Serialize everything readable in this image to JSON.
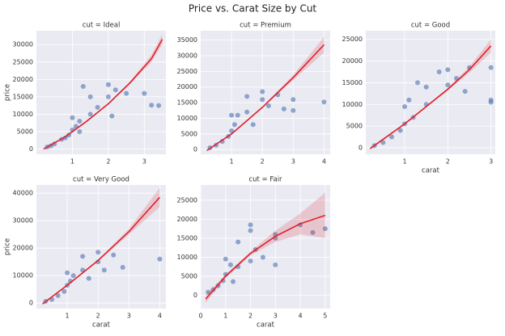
{
  "title": "Price vs. Carat Size by Cut",
  "chart_data": [
    {
      "type": "scatter",
      "title": "cut = Ideal",
      "ylabel": "price",
      "xlim": [
        0.0,
        3.6
      ],
      "xticks": [
        1,
        2,
        3
      ],
      "ylim": [
        -1500,
        34000
      ],
      "yticks": [
        0,
        5000,
        10000,
        15000,
        20000,
        25000,
        30000
      ],
      "grid": true,
      "points": {
        "color": "#4c72b0",
        "x": [
          0.3,
          0.4,
          0.5,
          0.7,
          0.9,
          1.0,
          1.1,
          1.2,
          1.0,
          1.5,
          1.5,
          1.3,
          1.7,
          2.0,
          2.0,
          2.2,
          2.5,
          2.1,
          3.0,
          3.4,
          3.2,
          0.8,
          1.2
        ],
        "y": [
          600,
          900,
          1500,
          2800,
          4000,
          5500,
          6500,
          8000,
          9000,
          10000,
          15000,
          18000,
          12000,
          15000,
          18500,
          17000,
          16000,
          9500,
          16000,
          12500,
          12600,
          3200,
          5000
        ]
      },
      "fit": {
        "color": "#e0202a",
        "x": [
          0.2,
          0.8,
          1.4,
          2,
          2.6,
          3.2,
          3.5
        ],
        "y": [
          0,
          3500,
          8000,
          13000,
          19000,
          26000,
          31500
        ],
        "lower": [
          -200,
          3400,
          7900,
          12800,
          18600,
          25000,
          30000
        ],
        "upper": [
          200,
          3600,
          8100,
          13200,
          19400,
          27000,
          33000
        ]
      }
    },
    {
      "type": "scatter",
      "title": "cut = Premium",
      "xlim": [
        0.0,
        4.2
      ],
      "xticks": [
        1,
        2,
        3,
        4
      ],
      "ylim": [
        -1500,
        38000
      ],
      "yticks": [
        0,
        5000,
        10000,
        15000,
        20000,
        25000,
        30000,
        35000
      ],
      "grid": true,
      "points": {
        "color": "#4c72b0",
        "x": [
          0.3,
          0.5,
          0.7,
          0.9,
          1.0,
          1.1,
          1.2,
          1.5,
          1.5,
          1.0,
          2.0,
          2.0,
          2.2,
          2.5,
          3.0,
          3.0,
          4.0,
          2.7,
          1.7
        ],
        "y": [
          600,
          1400,
          2600,
          4200,
          6000,
          8000,
          11000,
          12000,
          17000,
          11000,
          16000,
          18500,
          14000,
          17500,
          16000,
          12500,
          15200,
          13000,
          8000
        ]
      },
      "fit": {
        "color": "#e0202a",
        "x": [
          0.2,
          1,
          2,
          3,
          4
        ],
        "y": [
          -300,
          5000,
          13500,
          23000,
          33500
        ],
        "lower": [
          -500,
          4900,
          13300,
          22200,
          31000
        ],
        "upper": [
          -100,
          5100,
          13700,
          23800,
          36000
        ]
      }
    },
    {
      "type": "scatter",
      "title": "cut = Good",
      "xlabel": "carat",
      "xlim": [
        0.1,
        3.1
      ],
      "xticks": [
        1,
        2,
        3
      ],
      "ylim": [
        -1500,
        27000
      ],
      "yticks": [
        0,
        5000,
        10000,
        15000,
        20000,
        25000
      ],
      "grid": true,
      "points": {
        "color": "#4c72b0",
        "x": [
          0.3,
          0.5,
          0.7,
          0.9,
          1.0,
          1.0,
          1.2,
          1.1,
          1.5,
          1.5,
          2.0,
          2.0,
          1.8,
          2.2,
          2.5,
          2.4,
          3.0,
          3.0,
          3.0,
          1.3
        ],
        "y": [
          500,
          1200,
          2500,
          4000,
          5500,
          9500,
          7000,
          11000,
          10000,
          14000,
          14500,
          18000,
          17500,
          16000,
          18500,
          13000,
          18500,
          11000,
          10500,
          15000
        ]
      },
      "fit": {
        "color": "#e0202a",
        "x": [
          0.2,
          1,
          1.5,
          2,
          2.5,
          3
        ],
        "y": [
          -200,
          5500,
          9500,
          13500,
          18000,
          23500
        ],
        "lower": [
          -500,
          5300,
          9300,
          13200,
          17300,
          22000
        ],
        "upper": [
          100,
          5700,
          9700,
          13800,
          18700,
          25000
        ]
      }
    },
    {
      "type": "scatter",
      "title": "cut = Very Good",
      "ylabel": "price",
      "xlabel": "carat",
      "xlim": [
        0.0,
        4.2
      ],
      "xticks": [
        1,
        2,
        3,
        4
      ],
      "ylim": [
        -2000,
        43000
      ],
      "yticks": [
        0,
        10000,
        20000,
        30000,
        40000
      ],
      "grid": true,
      "points": {
        "color": "#4c72b0",
        "x": [
          0.3,
          0.5,
          0.7,
          0.9,
          1.0,
          1.1,
          1.2,
          1.5,
          1.5,
          1.0,
          2.0,
          2.0,
          2.2,
          2.5,
          2.8,
          4.0,
          1.7
        ],
        "y": [
          600,
          1300,
          2700,
          4200,
          6500,
          8000,
          10000,
          12000,
          17000,
          11000,
          15000,
          18500,
          12000,
          17500,
          13000,
          16000,
          9000
        ]
      },
      "fit": {
        "color": "#e0202a",
        "x": [
          0.2,
          1,
          2,
          3,
          4
        ],
        "y": [
          -300,
          6500,
          15500,
          26000,
          38500
        ],
        "lower": [
          -600,
          6300,
          15200,
          25000,
          35000
        ],
        "upper": [
          0,
          6700,
          15800,
          27000,
          42000
        ]
      }
    },
    {
      "type": "scatter",
      "title": "cut = Fair",
      "xlabel": "carat",
      "xlim": [
        0.0,
        5.2
      ],
      "xticks": [
        0,
        1,
        2,
        3,
        4,
        5
      ],
      "ylim": [
        -3500,
        29000
      ],
      "yticks": [
        0,
        5000,
        10000,
        15000,
        20000,
        25000
      ],
      "grid": true,
      "points": {
        "color": "#4c72b0",
        "x": [
          0.3,
          0.5,
          0.7,
          0.9,
          1.0,
          1.0,
          1.2,
          1.5,
          1.5,
          2.0,
          2.0,
          2.0,
          2.2,
          2.5,
          3.0,
          3.0,
          3.0,
          4.0,
          4.5,
          5.0,
          1.3
        ],
        "y": [
          800,
          1500,
          2500,
          3800,
          5500,
          9500,
          8000,
          7500,
          14000,
          9000,
          17000,
          18500,
          12000,
          10000,
          8000,
          16000,
          15000,
          18500,
          16500,
          17500,
          3600
        ]
      },
      "fit": {
        "color": "#e0202a",
        "x": [
          0.2,
          1,
          2,
          3,
          4,
          5
        ],
        "y": [
          -1000,
          5000,
          11000,
          15500,
          18800,
          21000
        ],
        "lower": [
          -2000,
          4500,
          10500,
          14000,
          16000,
          15000
        ],
        "upper": [
          0,
          5500,
          11500,
          17000,
          21500,
          27000
        ]
      }
    }
  ]
}
